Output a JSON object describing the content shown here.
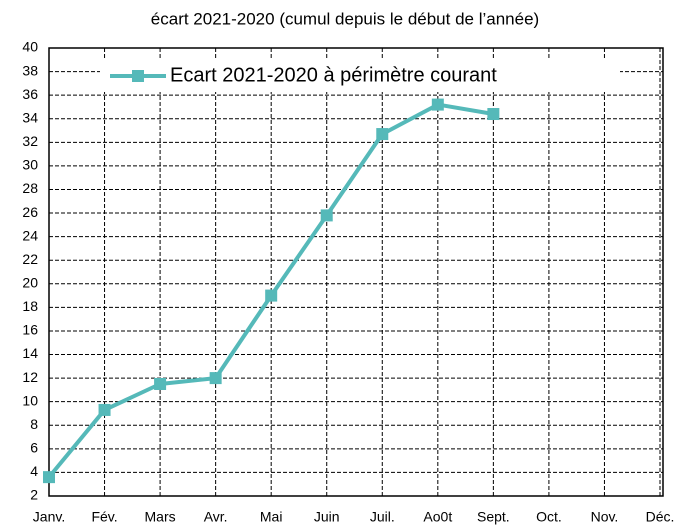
{
  "chart_data": {
    "type": "line",
    "title": "écart 2021-2020 (cumul depuis le début de l’année)",
    "categories": [
      "Janv.",
      "Fév.",
      "Mars",
      "Avr.",
      "Mai",
      "Juin",
      "Juil.",
      "Ao0t",
      "Sept.",
      "Oct.",
      "Nov.",
      "Déc."
    ],
    "series": [
      {
        "name": "Ecart 2021-2020 à périmètre courant",
        "color": "#55b9b9",
        "values": [
          3.6,
          9.3,
          11.5,
          12,
          19,
          25.8,
          32.7,
          35.2,
          34.4,
          null,
          null,
          null
        ]
      }
    ],
    "ylim": [
      2,
      40
    ],
    "yticks": [
      2,
      4,
      6,
      8,
      10,
      12,
      14,
      16,
      18,
      20,
      22,
      24,
      26,
      28,
      30,
      32,
      34,
      36,
      38,
      40
    ],
    "grid": true,
    "legend": "top"
  }
}
